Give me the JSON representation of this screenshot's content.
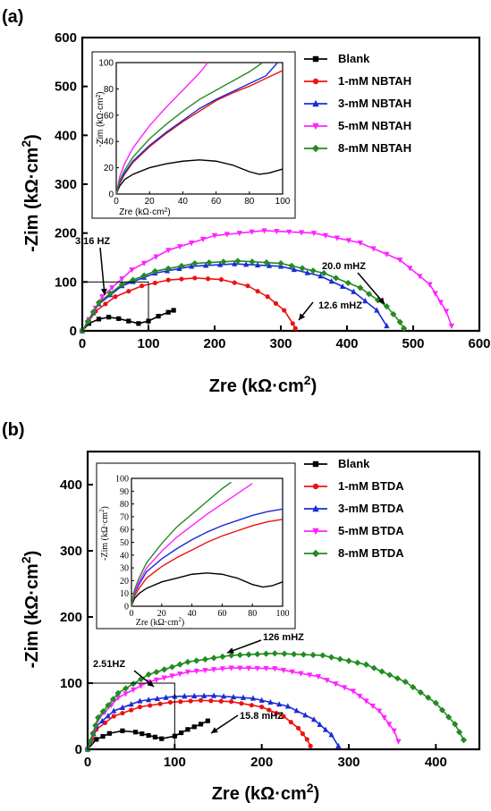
{
  "chart_data": [
    {
      "panel_label": "(a)",
      "type": "scatter",
      "xlabel": "Zre (kΩ·cm2)",
      "ylabel": "-Zim (kΩ·cm2)",
      "xlim": [
        0,
        600
      ],
      "ylim": [
        0,
        600
      ],
      "xticks": [
        "0",
        "100",
        "200",
        "300",
        "400",
        "500",
        "600"
      ],
      "yticks": [
        "0",
        "100",
        "200",
        "300",
        "400",
        "500",
        "600"
      ],
      "legend_placement": "top-right",
      "series": [
        {
          "name": "Blank",
          "color": "#000000",
          "marker": "square",
          "x": [
            0,
            10,
            25,
            40,
            55,
            70,
            85,
            100,
            115,
            130,
            138
          ],
          "y": [
            0,
            15,
            24,
            28,
            25,
            20,
            15,
            20,
            30,
            38,
            42
          ]
        },
        {
          "name": "1-mM NBTAH",
          "color": "#ee1111",
          "marker": "circle",
          "x": [
            0,
            20,
            50,
            90,
            130,
            170,
            210,
            250,
            280,
            305,
            318,
            322
          ],
          "y": [
            0,
            40,
            70,
            92,
            104,
            108,
            105,
            92,
            70,
            42,
            15,
            5
          ]
        },
        {
          "name": "3-mM NBTAH",
          "color": "#1a2bd6",
          "marker": "triangle",
          "x": [
            0,
            25,
            60,
            110,
            165,
            230,
            300,
            360,
            410,
            445,
            460
          ],
          "y": [
            0,
            55,
            92,
            118,
            132,
            137,
            132,
            112,
            80,
            42,
            10
          ]
        },
        {
          "name": "5-mM NBTAH",
          "color": "#ff22ff",
          "marker": "triangle-down",
          "x": [
            0,
            30,
            75,
            130,
            200,
            275,
            350,
            420,
            480,
            525,
            550,
            558
          ],
          "y": [
            0,
            70,
            125,
            165,
            195,
            205,
            200,
            180,
            145,
            95,
            40,
            10
          ]
        },
        {
          "name": "8-mM NBTAH",
          "color": "#228b22",
          "marker": "diamond",
          "x": [
            0,
            25,
            60,
            110,
            170,
            235,
            300,
            365,
            420,
            460,
            480,
            486
          ],
          "y": [
            0,
            58,
            95,
            122,
            138,
            143,
            138,
            118,
            88,
            50,
            18,
            5
          ]
        }
      ],
      "annotations": [
        "3.16 HZ",
        "20.0 mHZ",
        "12.6 mHZ"
      ],
      "inset": {
        "xlabel": "Zre (kΩ·cm2)",
        "ylabel": "-Zim (kΩ·cm2)",
        "xlim": [
          0,
          100
        ],
        "ylim": [
          0,
          100
        ],
        "xticks": [
          "0",
          "20",
          "40",
          "60",
          "80",
          "100"
        ],
        "yticks": [
          "0",
          "20",
          "40",
          "60",
          "80",
          "100"
        ],
        "series": [
          {
            "name": "Blank",
            "color": "#000000",
            "x": [
              0,
              2,
              5,
              10,
              20,
              30,
              40,
              50,
              60,
              70,
              80,
              86,
              92,
              100
            ],
            "y": [
              0,
              6,
              11,
              15,
              20,
              23,
              25,
              26,
              25,
              22,
              17,
              15,
              16,
              19
            ]
          },
          {
            "name": "1-mM NBTAH",
            "color": "#ee1111",
            "x": [
              0,
              2,
              5,
              10,
              20,
              30,
              40,
              50,
              60,
              70,
              80,
              90,
              100
            ],
            "y": [
              0,
              8,
              15,
              24,
              36,
              46,
              55,
              63,
              71,
              77,
              82,
              88,
              94
            ]
          },
          {
            "name": "3-mM NBTAH",
            "color": "#1a2bd6",
            "x": [
              0,
              2,
              5,
              10,
              20,
              30,
              40,
              50,
              60,
              70,
              80,
              90,
              97
            ],
            "y": [
              0,
              9,
              16,
              25,
              37,
              47,
              56,
              65,
              72,
              78,
              84,
              90,
              100
            ]
          },
          {
            "name": "5-mM NBTAH",
            "color": "#ff22ff",
            "x": [
              0,
              2,
              5,
              10,
              20,
              30,
              40,
              50,
              55
            ],
            "y": [
              0,
              13,
              23,
              35,
              52,
              66,
              79,
              92,
              100
            ]
          },
          {
            "name": "8-mM NBTAH",
            "color": "#228b22",
            "x": [
              0,
              2,
              5,
              10,
              20,
              30,
              40,
              50,
              60,
              70,
              80,
              88
            ],
            "y": [
              0,
              10,
              18,
              28,
              42,
              53,
              63,
              72,
              79,
              86,
              93,
              100
            ]
          }
        ]
      }
    },
    {
      "panel_label": "(b)",
      "type": "scatter",
      "xlabel": "Zre (kΩ·cm2)",
      "ylabel": "-Zim (kΩ·cm2)",
      "xlim": [
        0,
        450
      ],
      "ylim": [
        0,
        450
      ],
      "xticks": [
        "0",
        "100",
        "200",
        "300",
        "400"
      ],
      "yticks": [
        "0",
        "100",
        "200",
        "300",
        "400"
      ],
      "legend_placement": "top-right",
      "series": [
        {
          "name": "Blank",
          "color": "#000000",
          "marker": "square",
          "x": [
            0,
            10,
            25,
            40,
            55,
            70,
            85,
            100,
            115,
            130,
            138
          ],
          "y": [
            0,
            15,
            24,
            28,
            26,
            21,
            16,
            20,
            30,
            38,
            43
          ]
        },
        {
          "name": "1-mM BTDA",
          "color": "#ee1111",
          "marker": "circle",
          "x": [
            0,
            10,
            30,
            60,
            95,
            130,
            165,
            200,
            225,
            242,
            252,
            256
          ],
          "y": [
            0,
            30,
            50,
            64,
            71,
            74,
            72,
            64,
            50,
            32,
            15,
            5
          ]
        },
        {
          "name": "3-mM BTDA",
          "color": "#1a2bd6",
          "marker": "triangle",
          "x": [
            0,
            10,
            30,
            60,
            100,
            145,
            190,
            230,
            260,
            280,
            288
          ],
          "y": [
            0,
            35,
            58,
            73,
            80,
            81,
            77,
            65,
            45,
            22,
            5
          ]
        },
        {
          "name": "5-mM BTDA",
          "color": "#ff22ff",
          "marker": "triangle-down",
          "x": [
            0,
            12,
            35,
            70,
            115,
            165,
            215,
            265,
            305,
            335,
            352,
            357
          ],
          "y": [
            0,
            45,
            78,
            102,
            117,
            123,
            122,
            110,
            88,
            58,
            28,
            12
          ]
        },
        {
          "name": "8-mM BTDA",
          "color": "#228b22",
          "marker": "diamond",
          "x": [
            0,
            12,
            35,
            70,
            115,
            165,
            215,
            270,
            320,
            365,
            400,
            422,
            432
          ],
          "y": [
            0,
            48,
            85,
            113,
            132,
            142,
            145,
            142,
            128,
            102,
            70,
            38,
            14
          ]
        }
      ],
      "annotations": [
        "2.51HZ",
        "126 mHZ",
        "15.8 mHZ"
      ],
      "inset": {
        "xlabel": "Zre (kΩ·cm2)",
        "ylabel": "-Zim (kΩ·cm2)",
        "xlim": [
          0,
          100
        ],
        "ylim": [
          0,
          100
        ],
        "xticks": [
          "0",
          "20",
          "40",
          "60",
          "80",
          "100"
        ],
        "yticks": [
          "0",
          "10",
          "20",
          "30",
          "40",
          "50",
          "60",
          "70",
          "80",
          "90",
          "100"
        ],
        "series": [
          {
            "name": "Blank",
            "color": "#000000",
            "x": [
              0,
              2,
              5,
              10,
              20,
              30,
              40,
              50,
              60,
              70,
              80,
              87,
              93,
              100
            ],
            "y": [
              0,
              6,
              10,
              14,
              19,
              22,
              25,
              26,
              25,
              22,
              17,
              15,
              16,
              19
            ]
          },
          {
            "name": "1-mM BTDA",
            "color": "#ee1111",
            "x": [
              0,
              2,
              5,
              10,
              20,
              30,
              40,
              50,
              60,
              70,
              80,
              90,
              100
            ],
            "y": [
              0,
              8,
              14,
              22,
              31,
              38,
              44,
              50,
              55,
              59,
              63,
              66,
              68
            ]
          },
          {
            "name": "3-mM BTDA",
            "color": "#1a2bd6",
            "x": [
              0,
              2,
              5,
              10,
              20,
              30,
              40,
              50,
              60,
              70,
              80,
              90,
              100
            ],
            "y": [
              0,
              10,
              17,
              27,
              37,
              45,
              52,
              58,
              63,
              67,
              71,
              74,
              76
            ]
          },
          {
            "name": "5-mM BTDA",
            "color": "#ff22ff",
            "x": [
              0,
              2,
              5,
              10,
              20,
              30,
              40,
              50,
              60,
              70,
              80
            ],
            "y": [
              0,
              11,
              19,
              30,
              43,
              54,
              63,
              72,
              80,
              88,
              96
            ]
          },
          {
            "name": "8-mM BTDA",
            "color": "#228b22",
            "x": [
              0,
              2,
              5,
              10,
              20,
              30,
              40,
              50,
              60,
              66
            ],
            "y": [
              0,
              13,
              22,
              34,
              49,
              62,
              72,
              82,
              92,
              97
            ]
          }
        ]
      }
    }
  ]
}
